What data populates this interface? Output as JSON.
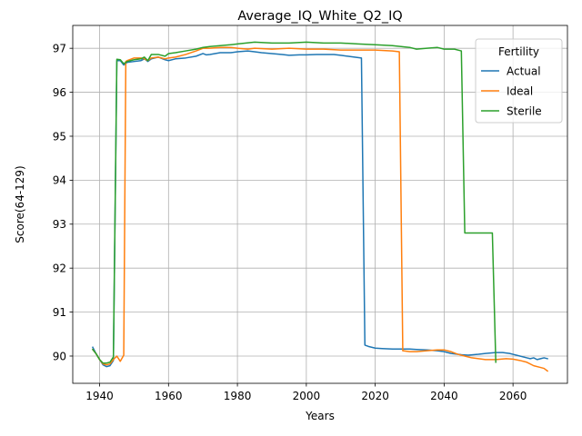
{
  "chart_data": {
    "type": "line",
    "title": "Average_IQ_White_Q2_IQ",
    "xlabel": "Years",
    "ylabel": "Score(64-129)",
    "xlim": [
      1932.2,
      2075.8
    ],
    "ylim": [
      89.38,
      97.52
    ],
    "xticks": [
      1940,
      1960,
      1980,
      2000,
      2020,
      2040,
      2060
    ],
    "yticks": [
      90,
      91,
      92,
      93,
      94,
      95,
      96,
      97
    ],
    "grid": true,
    "legend": {
      "title": "Fertility",
      "placement": "upper right"
    },
    "series": [
      {
        "name": "Actual",
        "color": "#1f77b4",
        "points": [
          [
            1938,
            90.2
          ],
          [
            1939,
            90.05
          ],
          [
            1940,
            89.92
          ],
          [
            1941,
            89.8
          ],
          [
            1942,
            89.76
          ],
          [
            1943,
            89.78
          ],
          [
            1944,
            89.9
          ],
          [
            1945,
            96.72
          ],
          [
            1946,
            96.72
          ],
          [
            1947,
            96.62
          ],
          [
            1948,
            96.68
          ],
          [
            1950,
            96.7
          ],
          [
            1952,
            96.72
          ],
          [
            1953,
            96.76
          ],
          [
            1954,
            96.7
          ],
          [
            1955,
            96.76
          ],
          [
            1957,
            96.8
          ],
          [
            1959,
            96.74
          ],
          [
            1960,
            96.72
          ],
          [
            1962,
            96.76
          ],
          [
            1965,
            96.78
          ],
          [
            1968,
            96.82
          ],
          [
            1970,
            96.88
          ],
          [
            1971,
            96.85
          ],
          [
            1972,
            96.86
          ],
          [
            1975,
            96.9
          ],
          [
            1978,
            96.9
          ],
          [
            1980,
            96.92
          ],
          [
            1983,
            96.94
          ],
          [
            1985,
            96.92
          ],
          [
            1987,
            96.9
          ],
          [
            1990,
            96.88
          ],
          [
            1993,
            96.86
          ],
          [
            1995,
            96.84
          ],
          [
            1998,
            96.85
          ],
          [
            2000,
            96.85
          ],
          [
            2003,
            96.86
          ],
          [
            2006,
            96.86
          ],
          [
            2008,
            96.86
          ],
          [
            2010,
            96.84
          ],
          [
            2012,
            96.82
          ],
          [
            2014,
            96.8
          ],
          [
            2016,
            96.78
          ],
          [
            2017,
            90.25
          ],
          [
            2018,
            90.22
          ],
          [
            2020,
            90.18
          ],
          [
            2022,
            90.17
          ],
          [
            2025,
            90.16
          ],
          [
            2028,
            90.16
          ],
          [
            2030,
            90.16
          ],
          [
            2032,
            90.15
          ],
          [
            2035,
            90.14
          ],
          [
            2038,
            90.12
          ],
          [
            2040,
            90.1
          ],
          [
            2042,
            90.06
          ],
          [
            2045,
            90.03
          ],
          [
            2047,
            90.02
          ],
          [
            2050,
            90.04
          ],
          [
            2052,
            90.06
          ],
          [
            2055,
            90.08
          ],
          [
            2057,
            90.08
          ],
          [
            2059,
            90.06
          ],
          [
            2060,
            90.04
          ],
          [
            2062,
            90.0
          ],
          [
            2064,
            89.96
          ],
          [
            2065,
            89.94
          ],
          [
            2066,
            89.96
          ],
          [
            2067,
            89.92
          ],
          [
            2068,
            89.94
          ],
          [
            2069,
            89.96
          ],
          [
            2070,
            89.94
          ]
        ]
      },
      {
        "name": "Ideal",
        "color": "#ff7f0e",
        "points": [
          [
            1938,
            90.15
          ],
          [
            1939,
            90.05
          ],
          [
            1940,
            89.92
          ],
          [
            1941,
            89.82
          ],
          [
            1942,
            89.8
          ],
          [
            1943,
            89.82
          ],
          [
            1944,
            89.92
          ],
          [
            1945,
            90.0
          ],
          [
            1946,
            89.88
          ],
          [
            1947,
            90.02
          ],
          [
            1947.6,
            96.7
          ],
          [
            1948,
            96.72
          ],
          [
            1950,
            96.78
          ],
          [
            1952,
            96.78
          ],
          [
            1953,
            96.76
          ],
          [
            1954,
            96.72
          ],
          [
            1955,
            96.78
          ],
          [
            1957,
            96.8
          ],
          [
            1959,
            96.76
          ],
          [
            1960,
            96.78
          ],
          [
            1962,
            96.8
          ],
          [
            1965,
            96.86
          ],
          [
            1968,
            96.94
          ],
          [
            1970,
            97.0
          ],
          [
            1972,
            97.0
          ],
          [
            1975,
            97.02
          ],
          [
            1978,
            97.02
          ],
          [
            1980,
            97.0
          ],
          [
            1983,
            96.98
          ],
          [
            1985,
            97.0
          ],
          [
            1990,
            96.98
          ],
          [
            1995,
            97.0
          ],
          [
            2000,
            96.98
          ],
          [
            2005,
            96.98
          ],
          [
            2010,
            96.96
          ],
          [
            2015,
            96.96
          ],
          [
            2020,
            96.96
          ],
          [
            2025,
            96.94
          ],
          [
            2027,
            96.92
          ],
          [
            2028,
            90.12
          ],
          [
            2030,
            90.1
          ],
          [
            2032,
            90.1
          ],
          [
            2035,
            90.12
          ],
          [
            2038,
            90.14
          ],
          [
            2040,
            90.14
          ],
          [
            2042,
            90.1
          ],
          [
            2044,
            90.04
          ],
          [
            2046,
            90.0
          ],
          [
            2048,
            89.96
          ],
          [
            2050,
            89.94
          ],
          [
            2052,
            89.92
          ],
          [
            2055,
            89.92
          ],
          [
            2058,
            89.94
          ],
          [
            2060,
            89.93
          ],
          [
            2062,
            89.9
          ],
          [
            2064,
            89.86
          ],
          [
            2066,
            89.78
          ],
          [
            2068,
            89.74
          ],
          [
            2069,
            89.72
          ],
          [
            2070,
            89.66
          ]
        ]
      },
      {
        "name": "Sterile",
        "color": "#2ca02c",
        "points": [
          [
            1938,
            90.15
          ],
          [
            1939,
            90.05
          ],
          [
            1940,
            89.92
          ],
          [
            1941,
            89.84
          ],
          [
            1942,
            89.84
          ],
          [
            1943,
            89.86
          ],
          [
            1944,
            89.98
          ],
          [
            1945,
            96.75
          ],
          [
            1946,
            96.74
          ],
          [
            1947,
            96.65
          ],
          [
            1948,
            96.7
          ],
          [
            1950,
            96.74
          ],
          [
            1952,
            96.76
          ],
          [
            1953,
            96.8
          ],
          [
            1954,
            96.72
          ],
          [
            1955,
            96.86
          ],
          [
            1957,
            96.86
          ],
          [
            1959,
            96.82
          ],
          [
            1960,
            96.88
          ],
          [
            1962,
            96.9
          ],
          [
            1965,
            96.94
          ],
          [
            1968,
            96.98
          ],
          [
            1970,
            97.02
          ],
          [
            1972,
            97.04
          ],
          [
            1975,
            97.06
          ],
          [
            1978,
            97.08
          ],
          [
            1980,
            97.1
          ],
          [
            1985,
            97.14
          ],
          [
            1990,
            97.12
          ],
          [
            1995,
            97.12
          ],
          [
            2000,
            97.14
          ],
          [
            2005,
            97.12
          ],
          [
            2010,
            97.12
          ],
          [
            2015,
            97.1
          ],
          [
            2020,
            97.08
          ],
          [
            2025,
            97.06
          ],
          [
            2030,
            97.02
          ],
          [
            2032,
            96.98
          ],
          [
            2035,
            97.0
          ],
          [
            2038,
            97.02
          ],
          [
            2040,
            96.98
          ],
          [
            2043,
            96.98
          ],
          [
            2045,
            96.94
          ],
          [
            2046,
            92.8
          ],
          [
            2048,
            92.8
          ],
          [
            2050,
            92.8
          ],
          [
            2052,
            92.8
          ],
          [
            2054,
            92.8
          ],
          [
            2055,
            89.86
          ]
        ]
      }
    ]
  }
}
